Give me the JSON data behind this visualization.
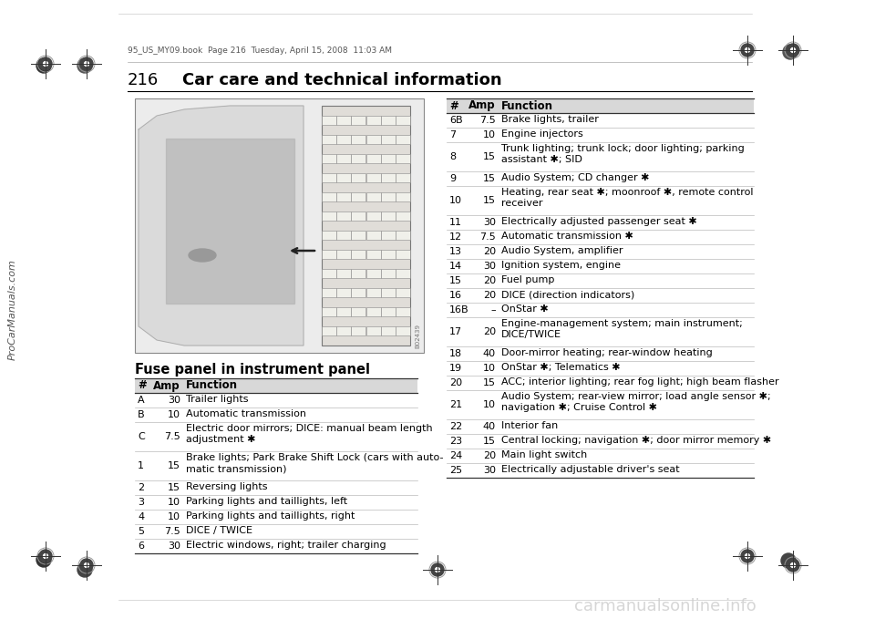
{
  "page_number": "216",
  "chapter_title": "Car care and technical information",
  "header_file": "95_US_MY09.book  Page 216  Tuesday, April 15, 2008  11:03 AM",
  "section_title": "Fuse panel in instrument panel",
  "table_headers": [
    "#",
    "Amp",
    "Function"
  ],
  "left_table": [
    [
      "A",
      "30",
      "Trailer lights"
    ],
    [
      "B",
      "10",
      "Automatic transmission"
    ],
    [
      "C",
      "7.5",
      "Electric door mirrors; DICE: manual beam length\nadjustment ♥"
    ],
    [
      "1",
      "15",
      "Brake lights; Park Brake Shift Lock (cars with auto-\nmatic transmission)"
    ],
    [
      "2",
      "15",
      "Reversing lights"
    ],
    [
      "3",
      "10",
      "Parking lights and taillights, left"
    ],
    [
      "4",
      "10",
      "Parking lights and taillights, right"
    ],
    [
      "5",
      "7.5",
      "DICE / TWICE"
    ],
    [
      "6",
      "30",
      "Electric windows, right; trailer charging"
    ]
  ],
  "right_table": [
    [
      "6B",
      "7.5",
      "Brake lights, trailer"
    ],
    [
      "7",
      "10",
      "Engine injectors"
    ],
    [
      "8",
      "15",
      "Trunk lighting; trunk lock; door lighting; parking\nassistant ♥; SID"
    ],
    [
      "9",
      "15",
      "Audio System; CD changer ♥"
    ],
    [
      "10",
      "15",
      "Heating, rear seat ♥; moonroof ♥, remote control\nreceiver"
    ],
    [
      "11",
      "30",
      "Electrically adjusted passenger seat ♥"
    ],
    [
      "12",
      "7.5",
      "Automatic transmission ♥"
    ],
    [
      "13",
      "20",
      "Audio System, amplifier"
    ],
    [
      "14",
      "30",
      "Ignition system, engine"
    ],
    [
      "15",
      "20",
      "Fuel pump"
    ],
    [
      "16",
      "20",
      "DICE (direction indicators)"
    ],
    [
      "16B",
      "–",
      "OnStar ♥"
    ],
    [
      "17",
      "20",
      "Engine-management system; main instrument;\nDICE/TWICE"
    ],
    [
      "18",
      "40",
      "Door-mirror heating; rear-window heating"
    ],
    [
      "19",
      "10",
      "OnStar ♥; Telematics ♥"
    ],
    [
      "20",
      "15",
      "ACC; interior lighting; rear fog light; high beam flasher"
    ],
    [
      "21",
      "10",
      "Audio System; rear-view mirror; load angle sensor ♥;\nnavigation ♥; Cruise Control ♥"
    ],
    [
      "22",
      "40",
      "Interior fan"
    ],
    [
      "23",
      "15",
      "Central locking; navigation ♥; door mirror memory ♥"
    ],
    [
      "24",
      "20",
      "Main light switch"
    ],
    [
      "25",
      "30",
      "Electrically adjustable driver's seat"
    ]
  ],
  "snowflake": "♥",
  "bg_color": "#ffffff",
  "sidebar_text": "ProCarManuals.com",
  "watermark_text": "carmanualsonline.info",
  "img_num": "B02439"
}
